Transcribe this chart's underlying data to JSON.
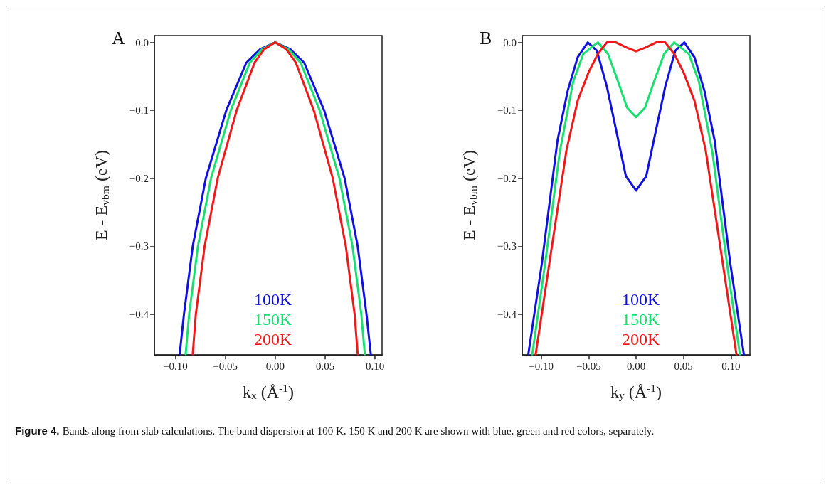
{
  "chart_data": [
    {
      "type": "line",
      "title": "A",
      "xlabel": "k$_{x}$ (Å$^{-1}$)",
      "ylabel": "E - E$_{vbm}$ (eV)",
      "xlim": [
        -0.121,
        0.107
      ],
      "ylim": [
        -0.46,
        0.01
      ],
      "xticks": [
        {
          "value": -0.1,
          "label": "−0.10"
        },
        {
          "value": -0.05,
          "label": "−0.05"
        },
        {
          "value": 0,
          "label": "0.00"
        },
        {
          "value": 0.05,
          "label": "0.05"
        },
        {
          "value": 0.1,
          "label": "0.10"
        }
      ],
      "yticks": [
        {
          "value": -0.4,
          "label": "−0.4"
        },
        {
          "value": -0.3,
          "label": "−0.3"
        },
        {
          "value": -0.2,
          "label": "−0.2"
        },
        {
          "value": -0.1,
          "label": "−0.1"
        },
        {
          "value": 0,
          "label": "0.0"
        }
      ],
      "grid": false,
      "legend": "bottom",
      "marker": "none",
      "line_style": "solid",
      "series": [
        {
          "name": "100K",
          "color": "#1010e0",
          "x": [
            -0.0957,
            -0.0914,
            -0.0826,
            -0.0695,
            -0.049,
            -0.029,
            -0.015,
            0,
            0.015,
            0.029,
            0.049,
            0.0695,
            0.0826,
            0.0914,
            0.0957
          ],
          "values": [
            -0.459,
            -0.4,
            -0.3,
            -0.2,
            -0.1,
            -0.03,
            -0.01,
            0,
            -0.01,
            -0.03,
            -0.1,
            -0.2,
            -0.3,
            -0.4,
            -0.459
          ]
        },
        {
          "name": "150K",
          "color": "#18e070",
          "x": [
            -0.0897,
            -0.0862,
            -0.0774,
            -0.0643,
            -0.0445,
            -0.0255,
            -0.013,
            0,
            0.013,
            0.0255,
            0.0445,
            0.0643,
            0.0774,
            0.0862,
            0.0897
          ],
          "values": [
            -0.459,
            -0.4,
            -0.3,
            -0.2,
            -0.1,
            -0.03,
            -0.01,
            0,
            -0.01,
            -0.03,
            -0.1,
            -0.2,
            -0.3,
            -0.4,
            -0.459
          ]
        },
        {
          "name": "200K",
          "color": "#f01818",
          "x": [
            -0.0826,
            -0.0795,
            -0.0707,
            -0.0576,
            -0.0386,
            -0.0207,
            -0.011,
            0,
            0.011,
            0.0207,
            0.0386,
            0.0576,
            0.0707,
            0.0795,
            0.0826
          ],
          "values": [
            -0.459,
            -0.4,
            -0.3,
            -0.2,
            -0.1,
            -0.03,
            -0.01,
            0,
            -0.01,
            -0.03,
            -0.1,
            -0.2,
            -0.3,
            -0.4,
            -0.459
          ]
        }
      ]
    },
    {
      "type": "line",
      "title": "B",
      "xlabel": "k$_{y}$ (Å$^{-1}$)",
      "ylabel": "E - E$_{vbm}$ (eV)",
      "xlim": [
        -0.12,
        0.12
      ],
      "ylim": [
        -0.46,
        0.01
      ],
      "xticks": [
        {
          "value": -0.1,
          "label": "−0.10"
        },
        {
          "value": -0.05,
          "label": "−0.05"
        },
        {
          "value": 0,
          "label": "0.00"
        },
        {
          "value": 0.05,
          "label": "0.05"
        },
        {
          "value": 0.1,
          "label": "0.10"
        }
      ],
      "yticks": [
        {
          "value": -0.4,
          "label": "−0.4"
        },
        {
          "value": -0.3,
          "label": "−0.3"
        },
        {
          "value": -0.2,
          "label": "−0.2"
        },
        {
          "value": -0.1,
          "label": "−0.1"
        },
        {
          "value": 0,
          "label": "0.0"
        }
      ],
      "grid": false,
      "legend": "bottom",
      "marker": "none",
      "line_style": "solid",
      "annotations": [
        "Figure 4.",
        "Bands along from slab calculations. The band dispersion at 100 K, 150 K and 200 K are shown with blue, green and red colors, separately."
      ],
      "series": [
        {
          "name": "100K",
          "color": "#1010e0",
          "x": [
            -0.1136,
            -0.0994,
            -0.0829,
            -0.0722,
            -0.0616,
            -0.0509,
            -0.0414,
            -0.0308,
            -0.0201,
            -0.0107,
            0,
            0.0107,
            0.0201,
            0.0308,
            0.0414,
            0.0509,
            0.0616,
            0.0722,
            0.0829,
            0.0994,
            0.1136
          ],
          "values": [
            -0.459,
            -0.326,
            -0.145,
            -0.072,
            -0.022,
            0,
            -0.012,
            -0.065,
            -0.135,
            -0.197,
            -0.218,
            -0.197,
            -0.135,
            -0.065,
            -0.012,
            0,
            -0.022,
            -0.072,
            -0.145,
            -0.326,
            -0.459
          ]
        },
        {
          "name": "150K",
          "color": "#18e070",
          "x": [
            -0.1094,
            -0.0959,
            -0.0805,
            -0.0663,
            -0.0556,
            -0.0402,
            -0.0296,
            -0.0189,
            -0.0095,
            0,
            0.0095,
            0.0189,
            0.0296,
            0.0402,
            0.0556,
            0.0663,
            0.0805,
            0.0959,
            0.1094
          ],
          "values": [
            -0.459,
            -0.326,
            -0.162,
            -0.058,
            -0.017,
            0,
            -0.017,
            -0.058,
            -0.096,
            -0.11,
            -0.096,
            -0.058,
            -0.017,
            0,
            -0.017,
            -0.058,
            -0.162,
            -0.326,
            -0.459
          ]
        },
        {
          "name": "200K",
          "color": "#f01818",
          "x": [
            -0.1058,
            -0.09,
            -0.0734,
            -0.0616,
            -0.0497,
            -0.0402,
            -0.0308,
            -0.0213,
            -0.0095,
            0,
            0.0095,
            0.0213,
            0.0308,
            0.0402,
            0.0497,
            0.0616,
            0.0734,
            0.09,
            0.1058
          ],
          "values": [
            -0.459,
            -0.312,
            -0.159,
            -0.086,
            -0.043,
            -0.017,
            0,
            0,
            -0.008,
            -0.013,
            -0.008,
            0,
            0,
            -0.017,
            -0.043,
            -0.086,
            -0.159,
            -0.312,
            -0.459
          ]
        }
      ]
    }
  ]
}
